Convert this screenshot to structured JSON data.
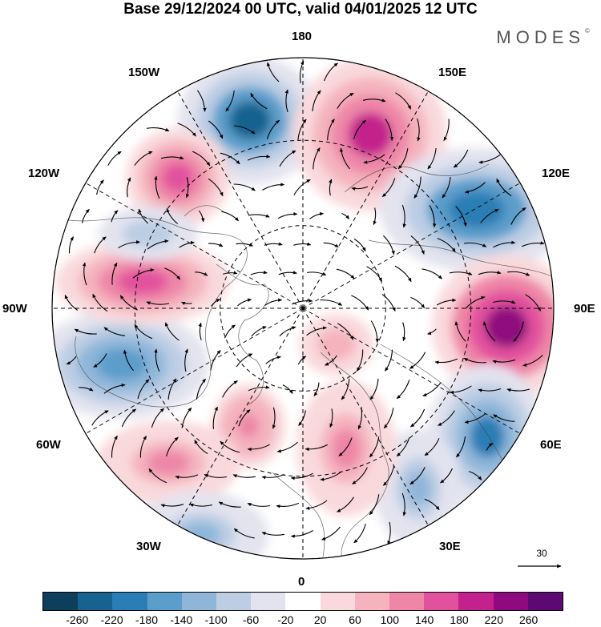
{
  "title": "Base 29/12/2024 00 UTC, valid 04/01/2025 12 UTC",
  "brand": "MODES",
  "brand_mark": "©",
  "longitude_labels": {
    "n180": "180",
    "w150": "150W",
    "e150": "150E",
    "w120": "120W",
    "e120": "120E",
    "w90": "90W",
    "e90": "90E",
    "w60": "60W",
    "e60": "60E",
    "w30": "30W",
    "e30": "30E",
    "n0": "0"
  },
  "reference_vector": {
    "value": "30"
  },
  "colorbar": {
    "colors": [
      "#0d3f5c",
      "#17628f",
      "#2b7db5",
      "#5b9dcb",
      "#8fb6d9",
      "#bccde4",
      "#e3e3ef",
      "#ffffff",
      "#f9d9dc",
      "#f4b3bd",
      "#ee86a8",
      "#e2519d",
      "#c3218d",
      "#8f0a7e",
      "#5c0a71"
    ],
    "tick_labels": [
      "-260",
      "-220",
      "-180",
      "-140",
      "-100",
      "-60",
      "-20",
      "20",
      "60",
      "100",
      "140",
      "180",
      "220",
      "260"
    ]
  },
  "anomaly_centers": [
    {
      "sign": "negative",
      "level": -220
    },
    {
      "sign": "positive",
      "level": 200
    },
    {
      "sign": "positive",
      "level": 150
    },
    {
      "sign": "negative",
      "level": -200
    },
    {
      "sign": "positive",
      "level": 240
    },
    {
      "sign": "negative",
      "level": -160
    },
    {
      "sign": "positive",
      "level": 160
    },
    {
      "sign": "negative",
      "level": -180
    },
    {
      "sign": "positive",
      "level": 140
    },
    {
      "sign": "positive",
      "level": 120
    },
    {
      "sign": "negative",
      "level": -120
    },
    {
      "sign": "positive",
      "level": 120
    },
    {
      "sign": "negative",
      "level": -100
    },
    {
      "sign": "negative",
      "level": -90
    },
    {
      "sign": "positive",
      "level": 90
    }
  ]
}
